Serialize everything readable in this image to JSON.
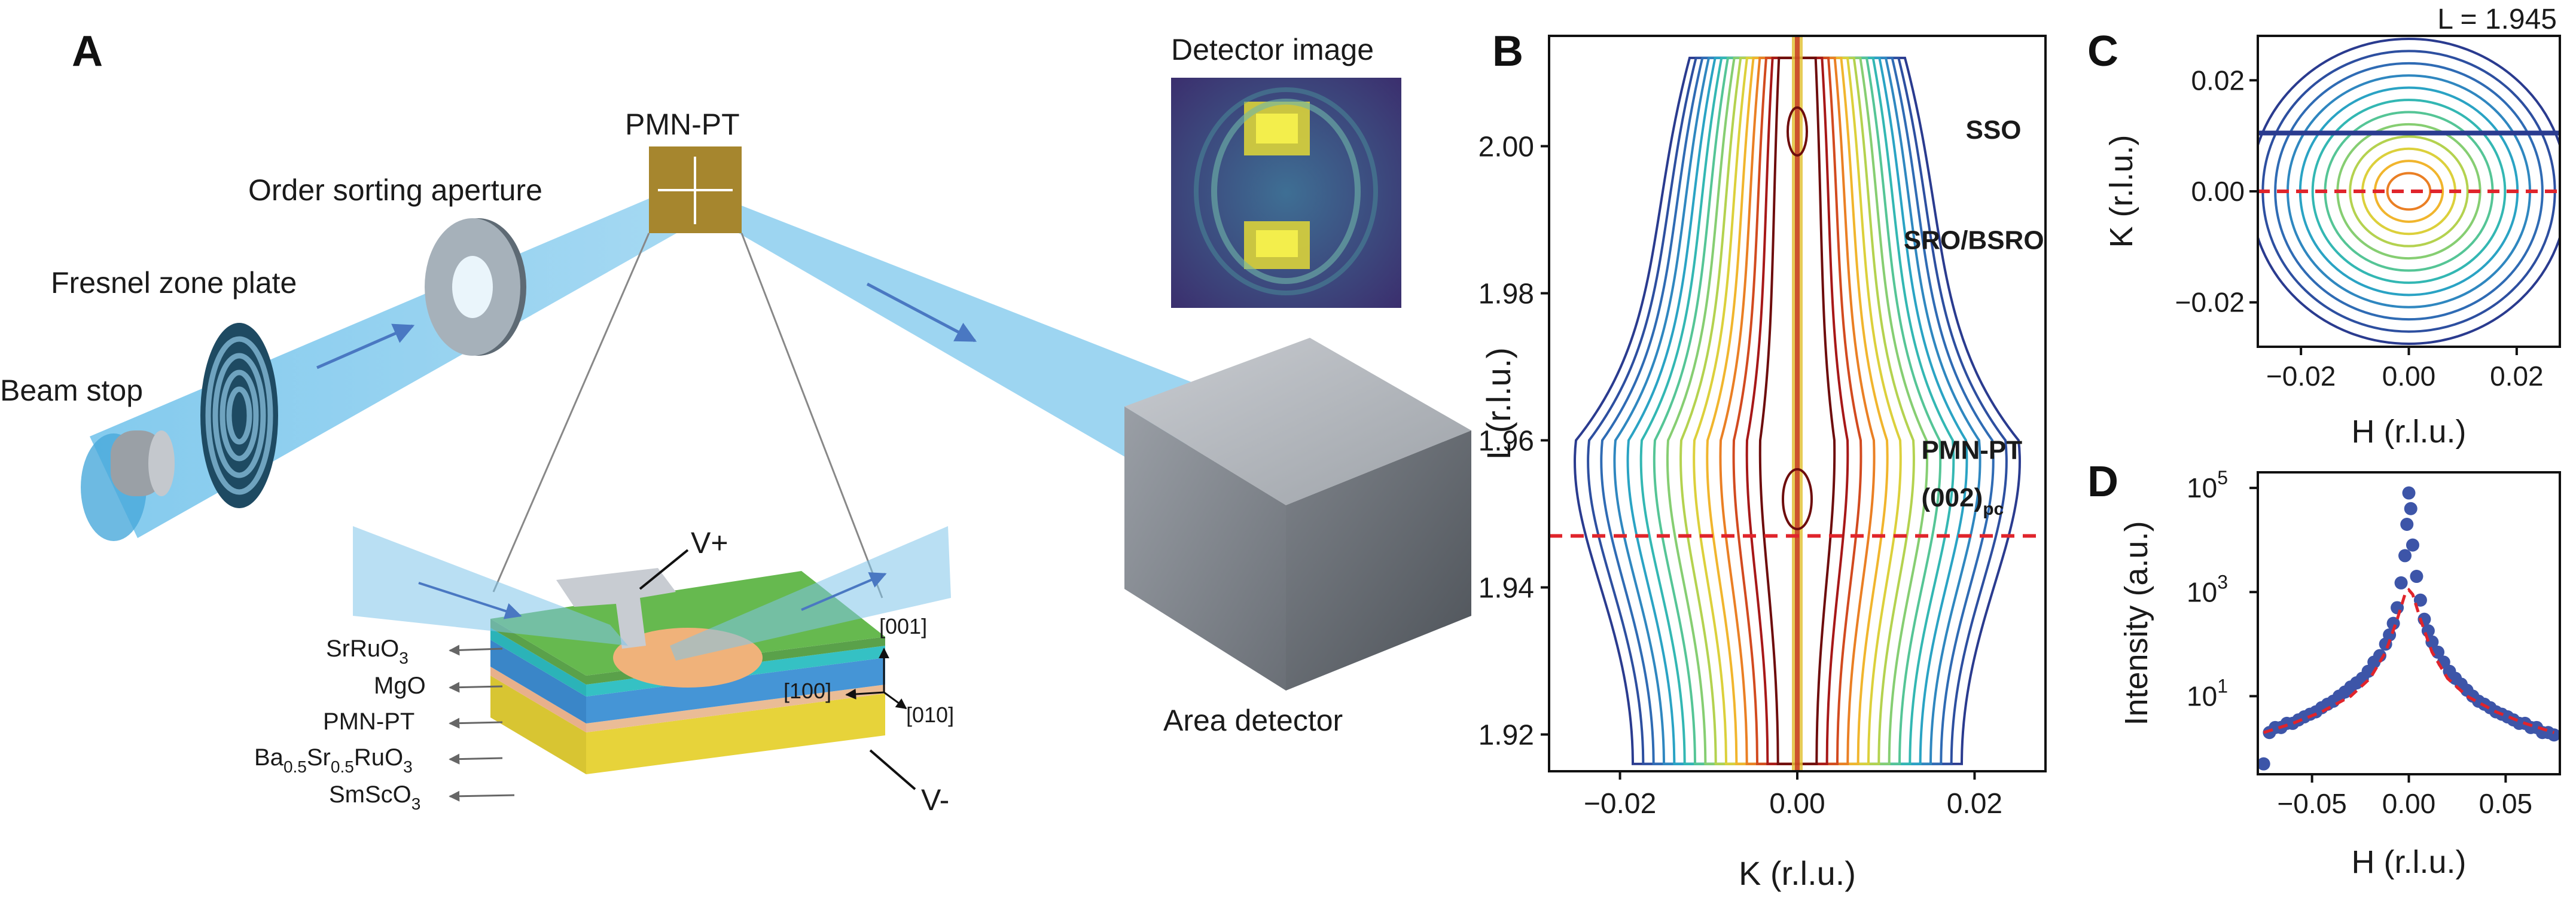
{
  "panel_labels": [
    "A",
    "B",
    "C",
    "D"
  ],
  "panel_a": {
    "detector_image_title": "Detector image",
    "sample_label": "PMN-PT",
    "aperture_label": "Order sorting aperture",
    "zone_plate_label": "Fresnel zone plate",
    "beam_stop_label": "Beam stop",
    "area_detector_label": "Area detector",
    "v_plus": "V+",
    "v_minus": "V-",
    "layers": [
      "SrRuO",
      "MgO",
      "PMN-PT",
      "Ba0.5Sr0.5RuO3",
      "SmScO"
    ],
    "layer_texts": {
      "srruo3": {
        "base": "SrRuO",
        "sub": "3"
      },
      "mgo": {
        "base": "MgO"
      },
      "pmnpt": {
        "base": "PMN-PT"
      },
      "bsro": {
        "b1": "Ba",
        "s1": "0.5",
        "b2": "Sr",
        "s2": "0.5",
        "b3": "RuO",
        "s3": "3"
      },
      "smsco3": {
        "base": "SmScO",
        "sub": "3"
      }
    },
    "directions": [
      "[001]",
      "[100]",
      "[010]"
    ]
  },
  "chart_data": [
    {
      "panel": "B",
      "type": "contour",
      "xlabel": "K (r.l.u.)",
      "ylabel": "L (r.l.u.)",
      "xlim": [
        -0.028,
        0.028
      ],
      "ylim": [
        1.915,
        2.015
      ],
      "xticks": [
        -0.02,
        0.0,
        0.02
      ],
      "xtick_labels": [
        "−0.02",
        "0.00",
        "0.02"
      ],
      "yticks": [
        1.92,
        1.94,
        1.96,
        1.98,
        2.0
      ],
      "ytick_labels": [
        "1.92",
        "1.94",
        "1.96",
        "1.98",
        "2.00"
      ],
      "annotations": [
        {
          "text": "SSO",
          "x": 0.019,
          "y": 2.001
        },
        {
          "text": "SRO/BSRO",
          "x": 0.012,
          "y": 1.986
        },
        {
          "text": "PMN-PT",
          "x": 0.014,
          "y": 1.9575
        },
        {
          "text": "(002)",
          "sub": "pc",
          "x": 0.014,
          "y": 1.951
        }
      ],
      "reference_line": {
        "y": 1.947,
        "style": "dashed",
        "color": "#e0242b"
      }
    },
    {
      "panel": "C",
      "type": "contour",
      "title": "L = 1.945",
      "xlabel": "H (r.l.u.)",
      "ylabel": "K (r.l.u.)",
      "xlim": [
        -0.028,
        0.028
      ],
      "ylim": [
        -0.028,
        0.028
      ],
      "xticks": [
        -0.02,
        0.0,
        0.02
      ],
      "xtick_labels": [
        "−0.02",
        "0.00",
        "0.02"
      ],
      "yticks": [
        -0.02,
        0.0,
        0.02
      ],
      "ytick_labels": [
        "−0.02",
        "0.00",
        "0.02"
      ],
      "reference_line": {
        "y": 0.0,
        "style": "dashed",
        "color": "#e0242b"
      }
    },
    {
      "panel": "D",
      "type": "scatter",
      "xlabel": "H (r.l.u.)",
      "ylabel": "Intensity (a.u.)",
      "yscale": "log",
      "xlim": [
        -0.078,
        0.078
      ],
      "xticks": [
        -0.05,
        0.0,
        0.05
      ],
      "xtick_labels": [
        "−0.05",
        "0.00",
        "0.05"
      ],
      "ytick_exponents": [
        "5",
        "3",
        "1"
      ],
      "ytick_base": "10",
      "series": [
        {
          "marker": "circle",
          "color": "#3d55a8",
          "x": [
            -0.075,
            -0.072,
            -0.069,
            -0.066,
            -0.063,
            -0.06,
            -0.057,
            -0.054,
            -0.051,
            -0.048,
            -0.045,
            -0.042,
            -0.039,
            -0.036,
            -0.033,
            -0.03,
            -0.027,
            -0.024,
            -0.021,
            -0.018,
            -0.015,
            -0.012,
            -0.01,
            -0.008,
            -0.006,
            -0.004,
            -0.002,
            -0.001,
            0,
            0.001,
            0.002,
            0.004,
            0.006,
            0.008,
            0.01,
            0.012,
            0.015,
            0.018,
            0.021,
            0.024,
            0.027,
            0.03,
            0.033,
            0.036,
            0.039,
            0.042,
            0.045,
            0.048,
            0.051,
            0.054,
            0.057,
            0.06,
            0.063,
            0.066,
            0.069,
            0.072,
            0.075
          ],
          "y": [
            0.5,
            2,
            2.5,
            2.5,
            3,
            3,
            3.5,
            4,
            4.5,
            5,
            6,
            7,
            8,
            10,
            12,
            15,
            18,
            22,
            30,
            45,
            60,
            100,
            150,
            250,
            500,
            1500,
            5000,
            20000,
            80000,
            40000,
            8000,
            2000,
            700,
            300,
            180,
            110,
            70,
            45,
            30,
            22,
            17,
            13,
            10,
            8,
            7,
            6,
            5,
            4.5,
            4,
            3.5,
            3,
            3,
            2.5,
            2.5,
            2,
            2,
            1.8
          ]
        },
        {
          "line": "dashed",
          "color": "#e0242b",
          "x": [
            -0.075,
            -0.06,
            -0.045,
            -0.03,
            -0.02,
            -0.012,
            -0.006,
            -0.002,
            0,
            0.002,
            0.006,
            0.012,
            0.02,
            0.03,
            0.045,
            0.06,
            0.075
          ],
          "y": [
            2,
            3,
            5,
            10,
            22,
            70,
            300,
            900,
            1100,
            900,
            300,
            70,
            22,
            10,
            5,
            3,
            2
          ]
        }
      ]
    }
  ]
}
